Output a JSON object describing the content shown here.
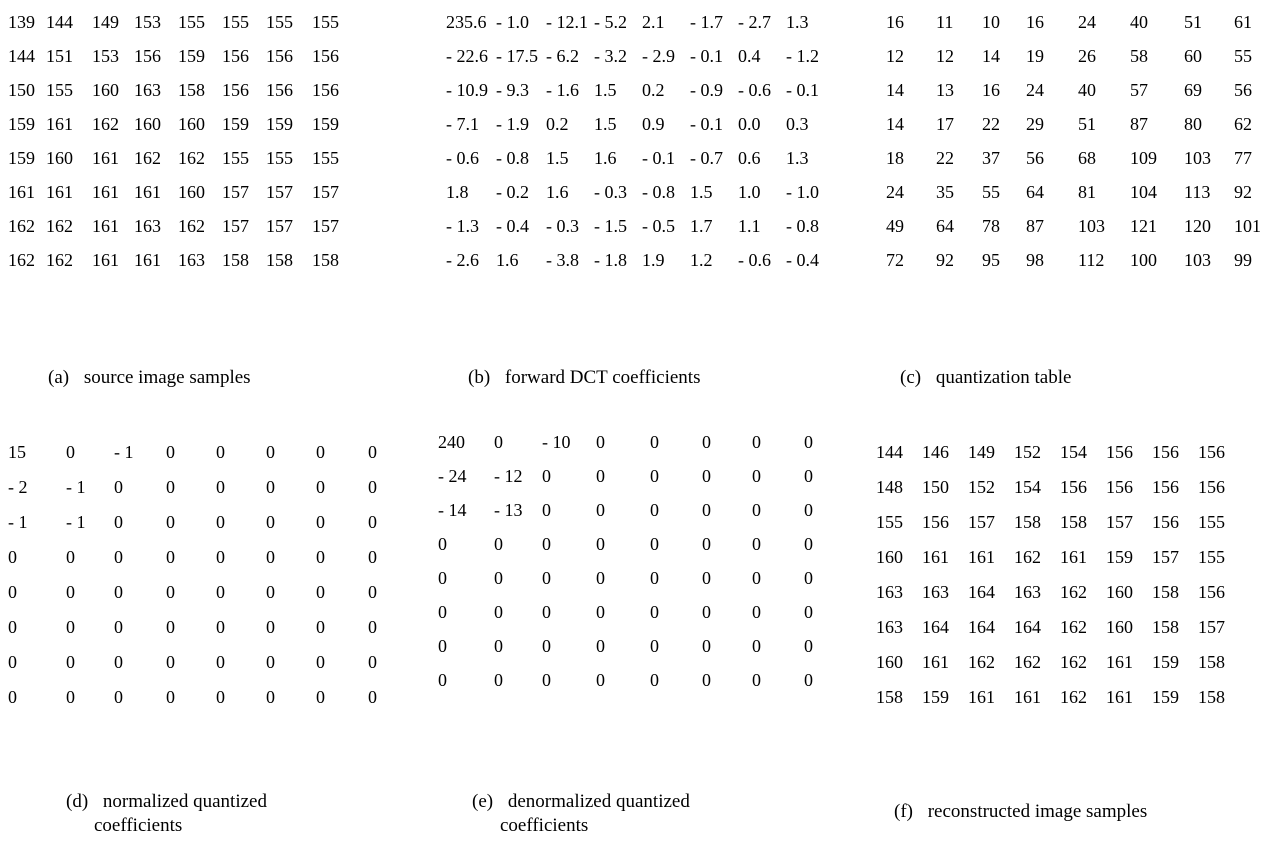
{
  "panels": [
    {
      "id": "a",
      "label": "(a)",
      "caption": "source image samples",
      "rows": [
        [
          "139",
          "144",
          "149",
          "153",
          "155",
          "155",
          "155",
          "155"
        ],
        [
          "144",
          "151",
          "153",
          "156",
          "159",
          "156",
          "156",
          "156"
        ],
        [
          "150",
          "155",
          "160",
          "163",
          "158",
          "156",
          "156",
          "156"
        ],
        [
          "159",
          "161",
          "162",
          "160",
          "160",
          "159",
          "159",
          "159"
        ],
        [
          "159",
          "160",
          "161",
          "162",
          "162",
          "155",
          "155",
          "155"
        ],
        [
          "161",
          "161",
          "161",
          "161",
          "160",
          "157",
          "157",
          "157"
        ],
        [
          "162",
          "162",
          "161",
          "163",
          "162",
          "157",
          "157",
          "157"
        ],
        [
          "162",
          "162",
          "161",
          "161",
          "163",
          "158",
          "158",
          "158"
        ]
      ]
    },
    {
      "id": "b",
      "label": "(b)",
      "caption": "forward DCT coefficients",
      "rows": [
        [
          "235.6",
          "- 1.0",
          "- 12.1",
          "- 5.2",
          "2.1",
          "- 1.7",
          "- 2.7",
          "1.3"
        ],
        [
          "- 22.6",
          "- 17.5",
          "- 6.2",
          "- 3.2",
          "- 2.9",
          "- 0.1",
          "0.4",
          "- 1.2"
        ],
        [
          "- 10.9",
          "- 9.3",
          "- 1.6",
          "1.5",
          "0.2",
          "- 0.9",
          "- 0.6",
          "- 0.1"
        ],
        [
          "- 7.1",
          "- 1.9",
          "0.2",
          "1.5",
          "0.9",
          "- 0.1",
          "0.0",
          "0.3"
        ],
        [
          "- 0.6",
          "- 0.8",
          "1.5",
          "1.6",
          "- 0.1",
          "- 0.7",
          "0.6",
          "1.3"
        ],
        [
          "1.8",
          "- 0.2",
          "1.6",
          "- 0.3",
          "- 0.8",
          "1.5",
          "1.0",
          "- 1.0"
        ],
        [
          "- 1.3",
          "- 0.4",
          "- 0.3",
          "- 1.5",
          "- 0.5",
          "1.7",
          "1.1",
          "- 0.8"
        ],
        [
          "- 2.6",
          "1.6",
          "- 3.8",
          "- 1.8",
          "1.9",
          "1.2",
          "- 0.6",
          "- 0.4"
        ]
      ]
    },
    {
      "id": "c",
      "label": "(c)",
      "caption": "quantization table",
      "rows": [
        [
          "16",
          "11",
          "10",
          "16",
          "24",
          "40",
          "51",
          "61"
        ],
        [
          "12",
          "12",
          "14",
          "19",
          "26",
          "58",
          "60",
          "55"
        ],
        [
          "14",
          "13",
          "16",
          "24",
          "40",
          "57",
          "69",
          "56"
        ],
        [
          "14",
          "17",
          "22",
          "29",
          "51",
          "87",
          "80",
          "62"
        ],
        [
          "18",
          "22",
          "37",
          "56",
          "68",
          "109",
          "103",
          "77"
        ],
        [
          "24",
          "35",
          "55",
          "64",
          "81",
          "104",
          "113",
          "92"
        ],
        [
          "49",
          "64",
          "78",
          "87",
          "103",
          "121",
          "120",
          "101"
        ],
        [
          "72",
          "92",
          "95",
          "98",
          "112",
          "100",
          "103",
          "99"
        ]
      ]
    },
    {
      "id": "d",
      "label": "(d)",
      "caption": "normalized quantized",
      "caption2": "coefficients",
      "rows": [
        [
          "15",
          "0",
          "- 1",
          "0",
          "0",
          "0",
          "0",
          "0"
        ],
        [
          "- 2",
          "- 1",
          "0",
          "0",
          "0",
          "0",
          "0",
          "0"
        ],
        [
          "- 1",
          "- 1",
          "0",
          "0",
          "0",
          "0",
          "0",
          "0"
        ],
        [
          "0",
          "0",
          "0",
          "0",
          "0",
          "0",
          "0",
          "0"
        ],
        [
          "0",
          "0",
          "0",
          "0",
          "0",
          "0",
          "0",
          "0"
        ],
        [
          "0",
          "0",
          "0",
          "0",
          "0",
          "0",
          "0",
          "0"
        ],
        [
          "0",
          "0",
          "0",
          "0",
          "0",
          "0",
          "0",
          "0"
        ],
        [
          "0",
          "0",
          "0",
          "0",
          "0",
          "0",
          "0",
          "0"
        ]
      ]
    },
    {
      "id": "e",
      "label": "(e)",
      "caption": "denormalized quantized",
      "caption2": "coefficients",
      "rows": [
        [
          "240",
          "0",
          "- 10",
          "0",
          "0",
          "0",
          "0",
          "0"
        ],
        [
          "- 24",
          "- 12",
          "0",
          "0",
          "0",
          "0",
          "0",
          "0"
        ],
        [
          "- 14",
          "- 13",
          "0",
          "0",
          "0",
          "0",
          "0",
          "0"
        ],
        [
          "0",
          "0",
          "0",
          "0",
          "0",
          "0",
          "0",
          "0"
        ],
        [
          "0",
          "0",
          "0",
          "0",
          "0",
          "0",
          "0",
          "0"
        ],
        [
          "0",
          "0",
          "0",
          "0",
          "0",
          "0",
          "0",
          "0"
        ],
        [
          "0",
          "0",
          "0",
          "0",
          "0",
          "0",
          "0",
          "0"
        ],
        [
          "0",
          "0",
          "0",
          "0",
          "0",
          "0",
          "0",
          "0"
        ]
      ]
    },
    {
      "id": "f",
      "label": "(f)",
      "caption": "reconstructed image samples",
      "rows": [
        [
          "144",
          "146",
          "149",
          "152",
          "154",
          "156",
          "156",
          "156"
        ],
        [
          "148",
          "150",
          "152",
          "154",
          "156",
          "156",
          "156",
          "156"
        ],
        [
          "155",
          "156",
          "157",
          "158",
          "158",
          "157",
          "156",
          "155"
        ],
        [
          "160",
          "161",
          "161",
          "162",
          "161",
          "159",
          "157",
          "155"
        ],
        [
          "163",
          "163",
          "164",
          "163",
          "162",
          "160",
          "158",
          "156"
        ],
        [
          "163",
          "164",
          "164",
          "164",
          "162",
          "160",
          "158",
          "157"
        ],
        [
          "160",
          "161",
          "162",
          "162",
          "162",
          "161",
          "159",
          "158"
        ],
        [
          "158",
          "159",
          "161",
          "161",
          "162",
          "161",
          "159",
          "158"
        ]
      ]
    }
  ]
}
